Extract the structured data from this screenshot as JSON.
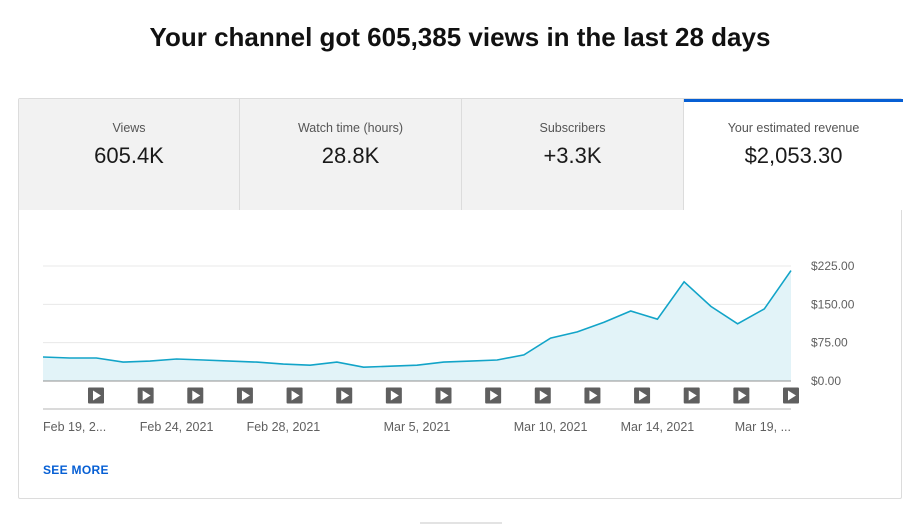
{
  "headline": "Your channel got 605,385 views in the last 28 days",
  "tabs": [
    {
      "label": "Views",
      "value": "605.4K",
      "active": false
    },
    {
      "label": "Watch time (hours)",
      "value": "28.8K",
      "active": false
    },
    {
      "label": "Subscribers",
      "value": "+3.3K",
      "active": false
    },
    {
      "label": "Your estimated revenue",
      "value": "$2,053.30",
      "active": true
    }
  ],
  "see_more": "SEE MORE",
  "colors": {
    "accent": "#065fd4",
    "line": "#12a4c8",
    "fill": "#e2f3f8",
    "video_marker": "#5f5f5f"
  },
  "chart_data": {
    "type": "area",
    "x": [
      "Feb 19, 2021",
      "Feb 20, 2021",
      "Feb 21, 2021",
      "Feb 22, 2021",
      "Feb 23, 2021",
      "Feb 24, 2021",
      "Feb 25, 2021",
      "Feb 26, 2021",
      "Feb 27, 2021",
      "Feb 28, 2021",
      "Mar 1, 2021",
      "Mar 2, 2021",
      "Mar 3, 2021",
      "Mar 4, 2021",
      "Mar 5, 2021",
      "Mar 6, 2021",
      "Mar 7, 2021",
      "Mar 8, 2021",
      "Mar 9, 2021",
      "Mar 10, 2021",
      "Mar 11, 2021",
      "Mar 12, 2021",
      "Mar 13, 2021",
      "Mar 14, 2021",
      "Mar 15, 2021",
      "Mar 16, 2021",
      "Mar 17, 2021",
      "Mar 18, 2021",
      "Mar 19, 2021"
    ],
    "values": [
      47,
      45,
      45,
      37,
      39,
      43,
      41,
      39,
      37,
      33,
      31,
      37,
      27,
      29,
      31,
      37,
      39,
      41,
      51,
      84,
      96,
      115,
      137,
      121,
      194,
      146,
      112,
      141,
      216
    ],
    "x_tick_labels": [
      "Feb 19, 2...",
      "Feb 24, 2021",
      "Feb 28, 2021",
      "Mar 5, 2021",
      "Mar 10, 2021",
      "Mar 14, 2021",
      "Mar 19, ..."
    ],
    "x_tick_indices": [
      0,
      5,
      9,
      14,
      19,
      23,
      28
    ],
    "y_tick_labels": [
      "$0.00",
      "$75.00",
      "$150.00",
      "$225.00"
    ],
    "y_tick_values": [
      0,
      75,
      150,
      225
    ],
    "ylim": [
      0,
      225
    ],
    "video_marker_count": 15,
    "grid": true
  }
}
